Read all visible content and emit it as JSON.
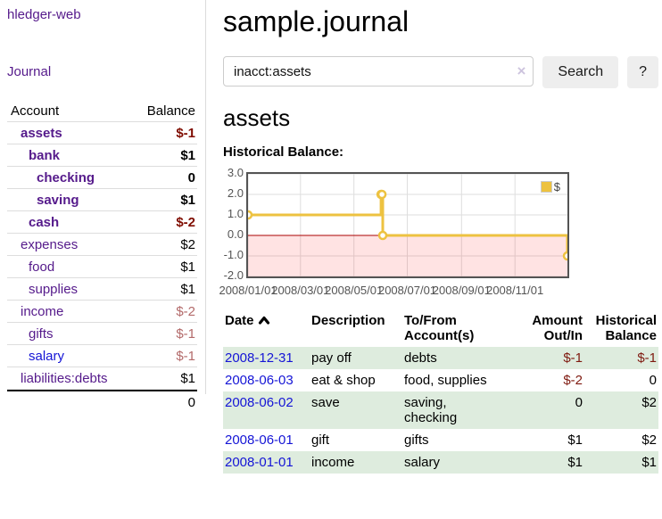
{
  "colors": {
    "link_visited_purple": "#551a8b",
    "link_blue": "#1515d6",
    "negative_dark": "#7f0c00",
    "negative_light": "#b36a6a",
    "row_green": "#deecde",
    "series_yellow": "#edc240",
    "zero_line_red": "#aa0000",
    "negative_region_pink": "rgba(255,0,0,0.11)",
    "grid_gray": "#dedede",
    "axis_text": "#545454"
  },
  "sidebar": {
    "app_title": "hledger-web",
    "nav_journal": "Journal",
    "accounts_table": {
      "header_account": "Account",
      "header_balance": "Balance",
      "rows": [
        {
          "name": "assets",
          "balance": "$-1",
          "depth": 1,
          "bold": true,
          "name_color": "#551a8b",
          "balance_color": "#7f0c00"
        },
        {
          "name": "bank",
          "balance": "$1",
          "depth": 2,
          "bold": true,
          "name_color": "#551a8b",
          "balance_color": "#000000"
        },
        {
          "name": "checking",
          "balance": "0",
          "depth": 3,
          "bold": true,
          "name_color": "#551a8b",
          "balance_color": "#000000"
        },
        {
          "name": "saving",
          "balance": "$1",
          "depth": 3,
          "bold": true,
          "name_color": "#551a8b",
          "balance_color": "#000000"
        },
        {
          "name": "cash",
          "balance": "$-2",
          "depth": 2,
          "bold": true,
          "name_color": "#551a8b",
          "balance_color": "#7f0c00"
        },
        {
          "name": "expenses",
          "balance": "$2",
          "depth": 1,
          "bold": false,
          "name_color": "#551a8b",
          "balance_color": "#000000"
        },
        {
          "name": "food",
          "balance": "$1",
          "depth": 2,
          "bold": false,
          "name_color": "#551a8b",
          "balance_color": "#000000"
        },
        {
          "name": "supplies",
          "balance": "$1",
          "depth": 2,
          "bold": false,
          "name_color": "#551a8b",
          "balance_color": "#000000"
        },
        {
          "name": "income",
          "balance": "$-2",
          "depth": 1,
          "bold": false,
          "name_color": "#551a8b",
          "balance_color": "#b36a6a"
        },
        {
          "name": "gifts",
          "balance": "$-1",
          "depth": 2,
          "bold": false,
          "name_color": "#551a8b",
          "balance_color": "#b36a6a"
        },
        {
          "name": "salary",
          "balance": "$-1",
          "depth": 2,
          "bold": false,
          "name_color": "#1515d6",
          "balance_color": "#b36a6a"
        },
        {
          "name": "liabilities:debts",
          "balance": "$1",
          "depth": 1,
          "bold": false,
          "name_color": "#551a8b",
          "balance_color": "#000000"
        }
      ],
      "total": "0"
    }
  },
  "main": {
    "title": "sample.journal",
    "search": {
      "value": "inacct:assets",
      "clear_icon": "×",
      "search_button": "Search",
      "help_button": "?"
    },
    "account_heading": "assets",
    "chart_label": "Historical Balance:"
  },
  "chart_data": {
    "type": "line",
    "step": true,
    "title": "Historical Balance:",
    "series": [
      {
        "name": "$",
        "color": "#edc240",
        "points": [
          [
            "2008-01-01",
            1
          ],
          [
            "2008-06-01",
            2
          ],
          [
            "2008-06-02",
            2
          ],
          [
            "2008-06-03",
            0
          ],
          [
            "2008-12-31",
            -1
          ]
        ]
      }
    ],
    "ylim": [
      -2,
      3
    ],
    "ytick_labels": [
      "3.0",
      "2.0",
      "1.0",
      "0.0",
      "-1.0",
      "-2.0"
    ],
    "ytick_values": [
      3,
      2,
      1,
      0,
      -1,
      -2
    ],
    "xtick_dates": [
      "2008-01-01",
      "2008-03-01",
      "2008-05-01",
      "2008-07-01",
      "2008-09-01",
      "2008-11-01"
    ],
    "xtick_labels": [
      "2008/01/01",
      "2008/03/01",
      "2008/05/01",
      "2008/07/01",
      "2008/09/01",
      "2008/11/01"
    ],
    "xrange": [
      "2008-01-01",
      "2008-12-31"
    ],
    "grid": true,
    "legend_position": "top-right",
    "legend_label": "$",
    "negative_region": {
      "from": 0,
      "to": -2,
      "color": "rgba(255,0,0,0.11)",
      "zero_line_color": "#aa0000"
    }
  },
  "register_table": {
    "headers": [
      {
        "lines": [
          "Date"
        ],
        "sorted": "asc"
      },
      {
        "lines": [
          "Description"
        ]
      },
      {
        "lines": [
          "To/From",
          "Account(s)"
        ]
      },
      {
        "lines": [
          "Amount",
          "Out/In"
        ],
        "align": "right"
      },
      {
        "lines": [
          "Historical",
          "Balance"
        ],
        "align": "right"
      }
    ],
    "rows": [
      {
        "date": "2008-12-31",
        "description": "pay off",
        "accounts_lines": [
          "debts"
        ],
        "amount": "$-1",
        "amount_color": "#7f1a10",
        "balance": "$-1",
        "balance_color": "#7f1a10",
        "shaded": true
      },
      {
        "date": "2008-06-03",
        "description": "eat & shop",
        "accounts_lines": [
          "food, supplies"
        ],
        "amount": "$-2",
        "amount_color": "#7f1a10",
        "balance": "0",
        "balance_color": "#000000",
        "shaded": false
      },
      {
        "date": "2008-06-02",
        "description": "save",
        "accounts_lines": [
          "saving,",
          "checking"
        ],
        "amount": "0",
        "amount_color": "#000000",
        "balance": "$2",
        "balance_color": "#000000",
        "shaded": true
      },
      {
        "date": "2008-06-01",
        "description": "gift",
        "accounts_lines": [
          "gifts"
        ],
        "amount": "$1",
        "amount_color": "#000000",
        "balance": "$2",
        "balance_color": "#000000",
        "shaded": false
      },
      {
        "date": "2008-01-01",
        "description": "income",
        "accounts_lines": [
          "salary"
        ],
        "amount": "$1",
        "amount_color": "#000000",
        "balance": "$1",
        "balance_color": "#000000",
        "shaded": true
      }
    ]
  }
}
